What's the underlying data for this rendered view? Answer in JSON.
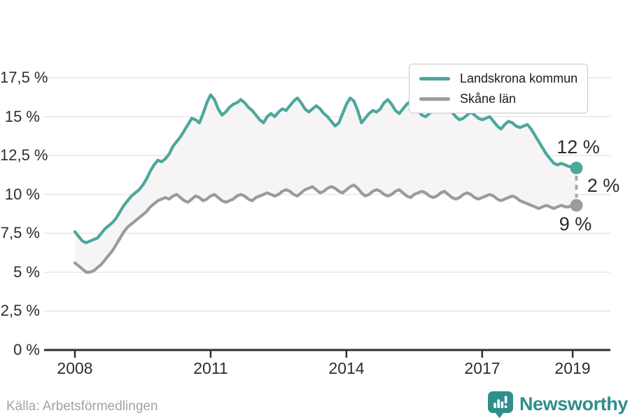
{
  "chart_data": {
    "type": "line",
    "title": "",
    "x_start": "2008-01",
    "x_end": "2019-02",
    "x_tick_labels": [
      "2008",
      "2011",
      "2014",
      "2017",
      "2019"
    ],
    "x_tick_years": [
      2008,
      2011,
      2014,
      2017,
      2019
    ],
    "y_ticks": [
      "0 %",
      "2,5 %",
      "5 %",
      "7,5 %",
      "10 %",
      "12,5 %",
      "15 %",
      "17,5 %"
    ],
    "y_tick_values": [
      0,
      2.5,
      5,
      7.5,
      10,
      12.5,
      15,
      17.5
    ],
    "ylim": [
      0,
      17.5
    ],
    "grid": "horizontal",
    "legend_position": "top-right",
    "band_fill": "#f6f4f4",
    "series": [
      {
        "name": "Landskrona kommun",
        "color": "#4ca79c",
        "values": [
          7.6,
          7.3,
          7.0,
          6.9,
          7.0,
          7.1,
          7.2,
          7.5,
          7.8,
          8.0,
          8.2,
          8.5,
          8.9,
          9.3,
          9.6,
          9.9,
          10.1,
          10.3,
          10.6,
          11.0,
          11.5,
          11.9,
          12.2,
          12.1,
          12.3,
          12.6,
          13.1,
          13.4,
          13.7,
          14.1,
          14.5,
          14.9,
          14.8,
          14.6,
          15.2,
          15.9,
          16.4,
          16.1,
          15.5,
          15.1,
          15.3,
          15.6,
          15.8,
          15.9,
          16.1,
          15.9,
          15.6,
          15.4,
          15.1,
          14.8,
          14.6,
          15.0,
          15.2,
          15.0,
          15.3,
          15.5,
          15.4,
          15.7,
          16.0,
          16.2,
          15.9,
          15.5,
          15.3,
          15.5,
          15.7,
          15.5,
          15.2,
          15.0,
          14.7,
          14.4,
          14.6,
          15.2,
          15.8,
          16.2,
          16.0,
          15.4,
          14.6,
          14.9,
          15.2,
          15.4,
          15.3,
          15.5,
          15.9,
          16.1,
          15.8,
          15.4,
          15.2,
          15.5,
          15.8,
          16.0,
          15.7,
          15.4,
          15.1,
          15.0,
          15.2,
          15.4,
          15.6,
          15.9,
          16.1,
          15.7,
          15.3,
          15.0,
          14.8,
          14.9,
          15.1,
          15.3,
          15.1,
          14.9,
          14.8,
          14.9,
          15.0,
          14.7,
          14.4,
          14.2,
          14.5,
          14.7,
          14.6,
          14.4,
          14.3,
          14.4,
          14.5,
          14.2,
          13.8,
          13.4,
          13.0,
          12.6,
          12.3,
          12.0,
          11.9,
          12.0,
          11.9,
          11.8,
          11.8,
          11.7
        ]
      },
      {
        "name": "Skåne län",
        "color": "#9b9b9b",
        "values": [
          5.6,
          5.4,
          5.2,
          5.0,
          5.0,
          5.1,
          5.3,
          5.5,
          5.8,
          6.1,
          6.4,
          6.8,
          7.2,
          7.6,
          7.9,
          8.1,
          8.3,
          8.5,
          8.7,
          8.9,
          9.2,
          9.4,
          9.6,
          9.7,
          9.8,
          9.7,
          9.9,
          10.0,
          9.8,
          9.6,
          9.5,
          9.7,
          9.9,
          9.8,
          9.6,
          9.7,
          9.9,
          10.0,
          9.8,
          9.6,
          9.5,
          9.6,
          9.7,
          9.9,
          10.0,
          9.9,
          9.7,
          9.6,
          9.8,
          9.9,
          10.0,
          10.1,
          10.0,
          9.9,
          10.0,
          10.2,
          10.3,
          10.2,
          10.0,
          9.9,
          10.1,
          10.3,
          10.4,
          10.5,
          10.3,
          10.1,
          10.2,
          10.4,
          10.5,
          10.4,
          10.2,
          10.1,
          10.3,
          10.5,
          10.6,
          10.4,
          10.1,
          9.9,
          10.0,
          10.2,
          10.3,
          10.2,
          10.0,
          9.9,
          10.0,
          10.2,
          10.3,
          10.1,
          9.9,
          9.8,
          10.0,
          10.1,
          10.2,
          10.1,
          9.9,
          9.8,
          9.9,
          10.1,
          10.2,
          10.0,
          9.8,
          9.7,
          9.8,
          10.0,
          10.1,
          10.0,
          9.8,
          9.7,
          9.8,
          9.9,
          10.0,
          9.9,
          9.7,
          9.6,
          9.7,
          9.8,
          9.9,
          9.8,
          9.6,
          9.5,
          9.4,
          9.3,
          9.2,
          9.1,
          9.2,
          9.3,
          9.2,
          9.1,
          9.2,
          9.3,
          9.2,
          9.2,
          9.3,
          9.3
        ]
      }
    ],
    "end_labels": {
      "top": "12 %",
      "middle": "2 %",
      "bottom": "9 %"
    },
    "end_values": {
      "landskrona": 11.7,
      "skane": 9.3,
      "gap": 2
    }
  },
  "legend": {
    "items": [
      {
        "label": "Landskrona kommun",
        "color": "#4ca79c"
      },
      {
        "label": "Skåne län",
        "color": "#9b9b9b"
      }
    ]
  },
  "footer": {
    "source": "Källa: Arbetsförmedlingen",
    "brand": "Newsworthy",
    "brand_color": "#2e8f8c"
  },
  "colors": {
    "axis": "#2f2f2f",
    "gridline": "#e3e3e3",
    "tick_text": "#2d2d2d",
    "annotation_text": "#2b2b2b",
    "connector": "#a9a9a9",
    "source_text": "#a3a3a3"
  }
}
